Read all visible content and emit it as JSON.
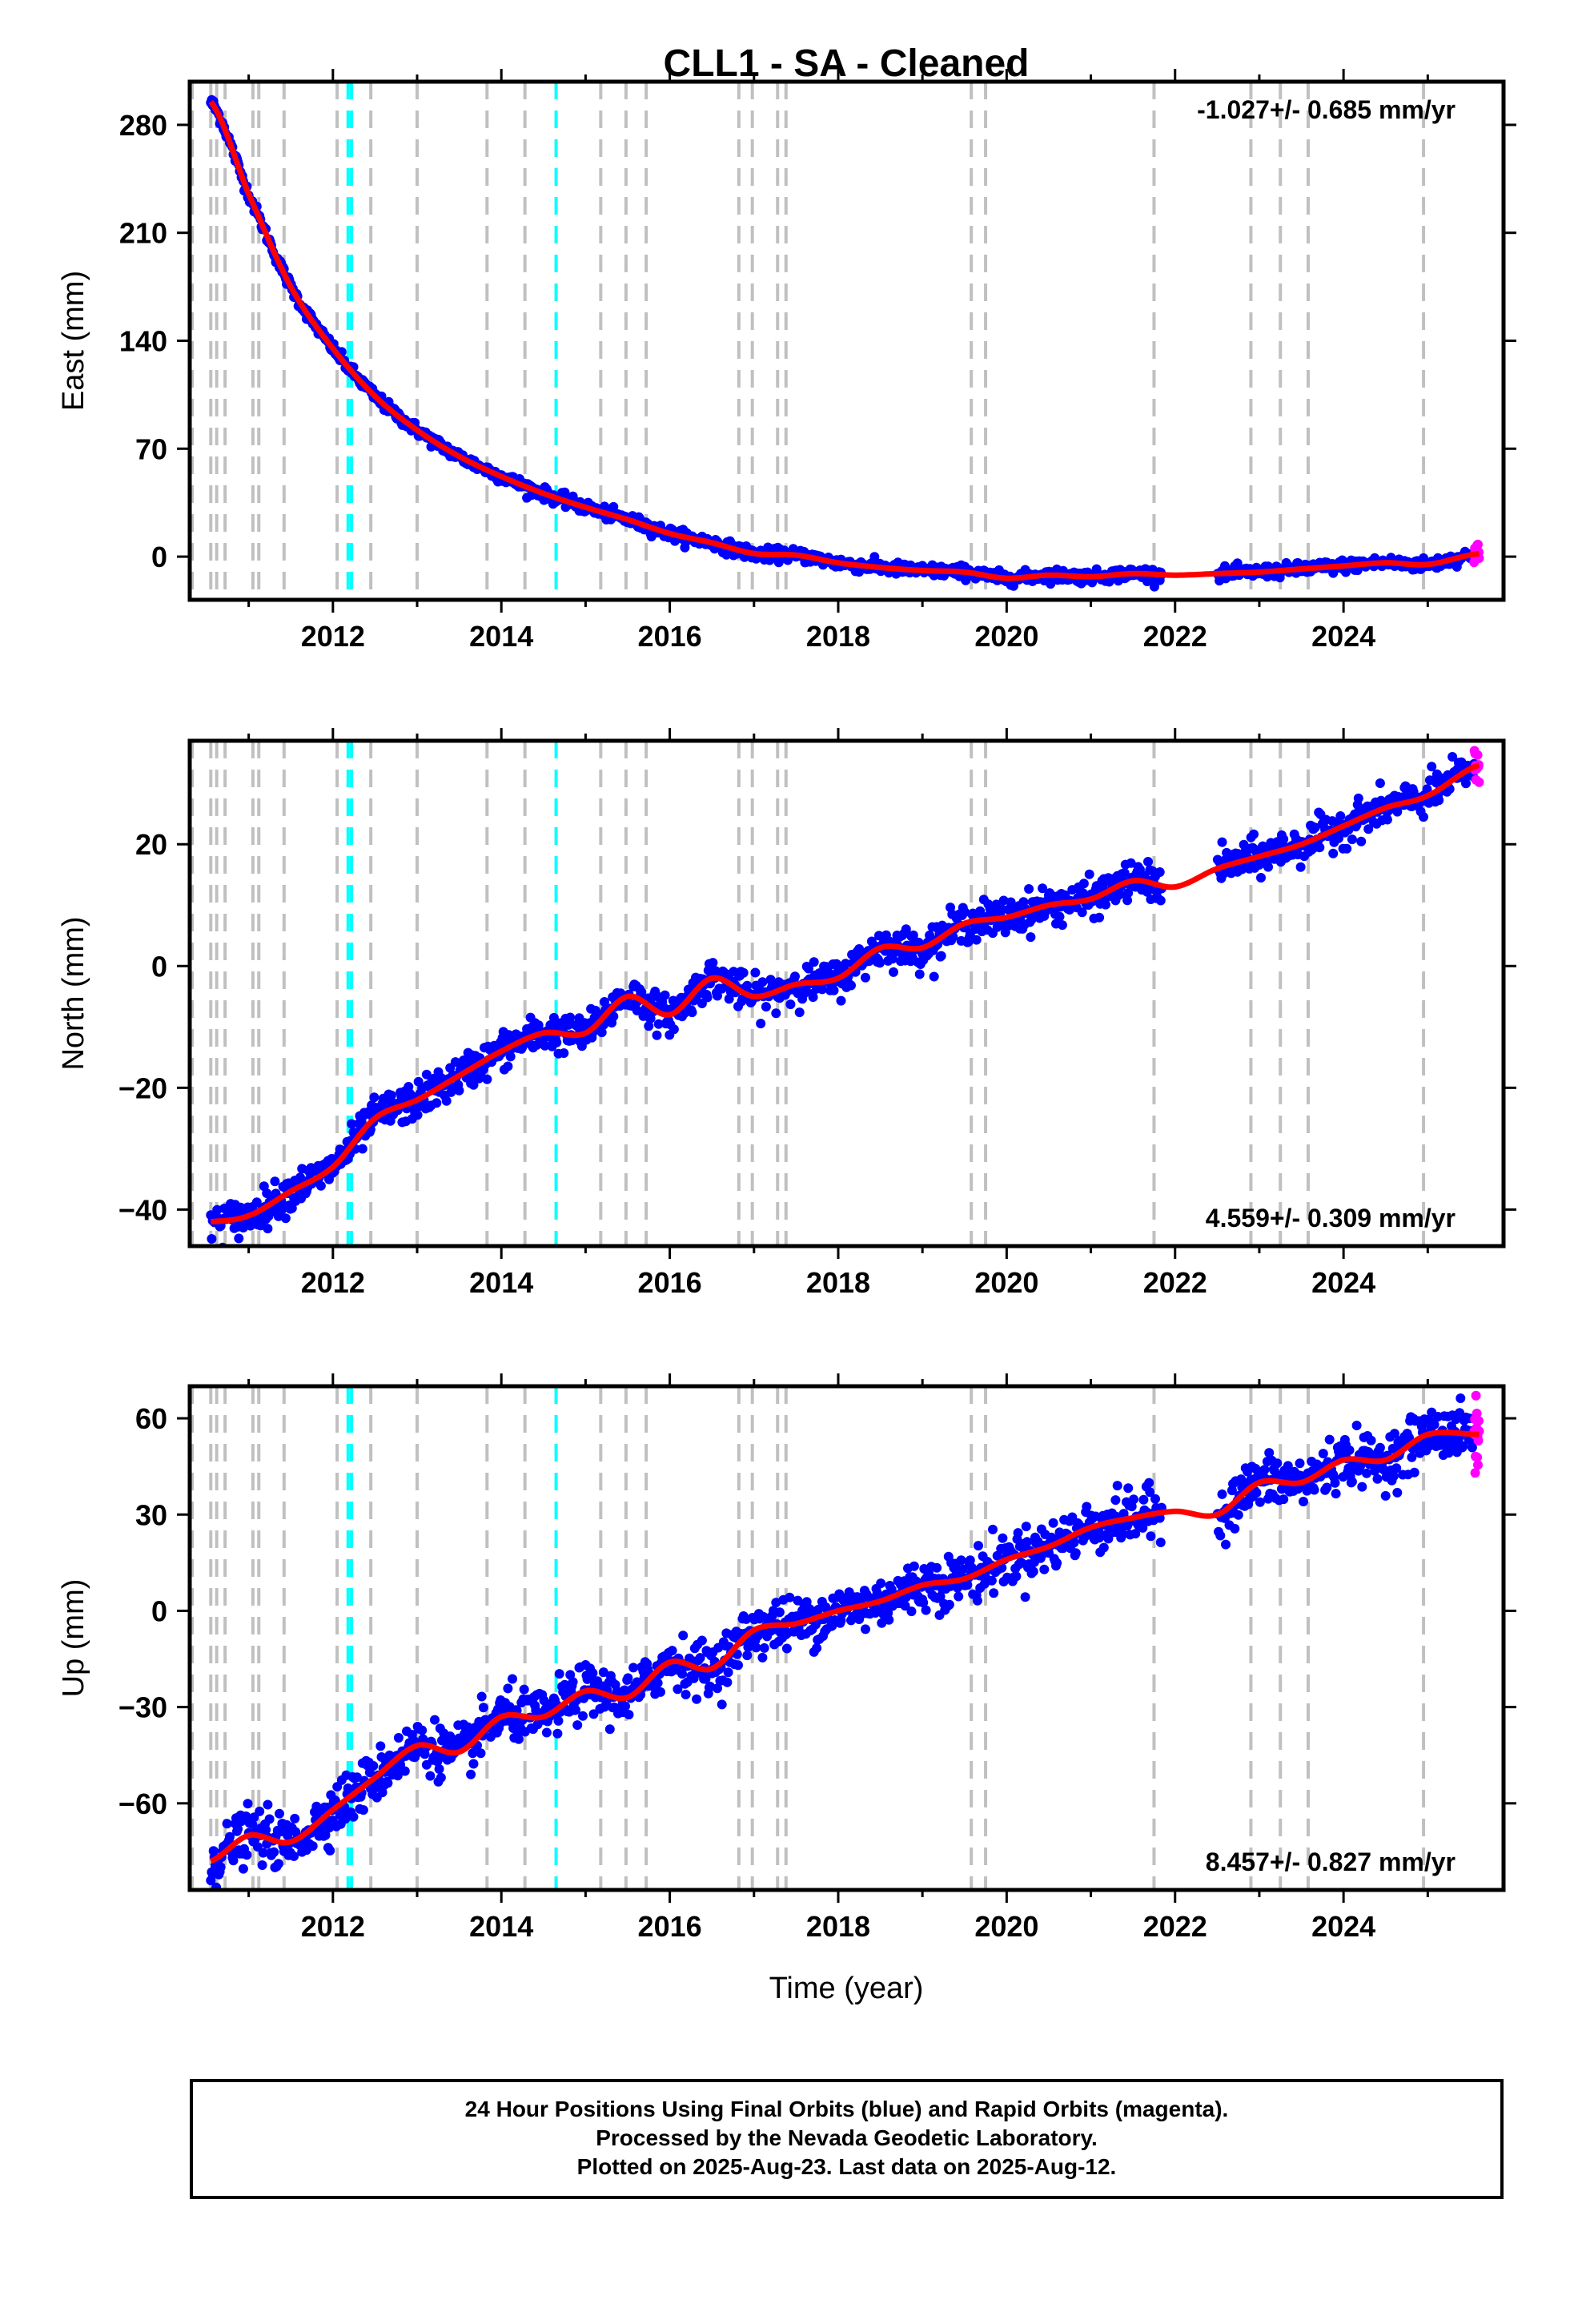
{
  "title": "CLL1  - SA - Cleaned",
  "xlabel": "Time (year)",
  "footer": {
    "line1": "24 Hour Positions Using Final Orbits (blue) and Rapid Orbits (magenta).",
    "line2": "Processed by the Nevada Geodetic Laboratory.",
    "line3": "Plotted on 2025-Aug-23. Last data on 2025-Aug-12."
  },
  "colors": {
    "final_orbits": "#0000ff",
    "rapid_orbits": "#ff00ff",
    "model": "#ff0000",
    "equipment_change": "#c0c0c0",
    "earthquake": "#00ffff"
  },
  "chart_data": [
    {
      "type": "scatter",
      "ylabel": "East (mm)",
      "rate": "-1.027+/- 0.685 mm/yr",
      "xlim": [
        2010.3,
        2025.9
      ],
      "ylim": [
        -28,
        308
      ],
      "xticks": [
        2012,
        2014,
        2016,
        2018,
        2020,
        2022,
        2024
      ],
      "yticks": [
        0,
        70,
        140,
        210,
        280
      ],
      "grid": false,
      "data_span": [
        2010.55,
        2025.61
      ],
      "gap": [
        2021.85,
        2022.5
      ],
      "series": [
        {
          "name": "Final Orbits (blue)",
          "color": "#0000ff",
          "noise": 2.0
        },
        {
          "name": "Rapid Orbits (magenta)",
          "color": "#ff00ff",
          "x_range": [
            2025.55,
            2025.61
          ]
        }
      ],
      "model_points": {
        "x": [
          2010.55,
          2011.0,
          2011.5,
          2012.0,
          2012.5,
          2013.0,
          2013.5,
          2014.0,
          2014.5,
          2015.0,
          2015.5,
          2016.0,
          2016.5,
          2017.0,
          2017.5,
          2018.0,
          2018.5,
          2019.0,
          2019.5,
          2020.0,
          2020.5,
          2021.0,
          2021.5,
          2022.0,
          2022.5,
          2023.0,
          2023.5,
          2024.0,
          2024.5,
          2025.0,
          2025.61
        ],
        "y": [
          295,
          235,
          175,
          135,
          104,
          82,
          65,
          52,
          41,
          32,
          24,
          15,
          9,
          2,
          1,
          -4,
          -7,
          -9,
          -10,
          -14,
          -12,
          -13,
          -11,
          -12,
          -11,
          -10,
          -8,
          -6,
          -4,
          -5,
          2
        ]
      }
    },
    {
      "type": "scatter",
      "ylabel": "North (mm)",
      "rate": "4.559+/- 0.309 mm/yr",
      "xlim": [
        2010.3,
        2025.9
      ],
      "ylim": [
        -46,
        37
      ],
      "xticks": [
        2012,
        2014,
        2016,
        2018,
        2020,
        2022,
        2024
      ],
      "yticks": [
        -40,
        -20,
        0,
        20
      ],
      "grid": false,
      "data_span": [
        2010.55,
        2025.61
      ],
      "gap": [
        2021.85,
        2022.5
      ],
      "series": [
        {
          "name": "Final Orbits (blue)",
          "color": "#0000ff",
          "noise": 1.5
        },
        {
          "name": "Rapid Orbits (magenta)",
          "color": "#ff00ff",
          "x_range": [
            2025.55,
            2025.61
          ]
        }
      ],
      "model_points": {
        "x": [
          2010.55,
          2011.0,
          2011.5,
          2012.0,
          2012.5,
          2013.0,
          2013.5,
          2014.0,
          2014.5,
          2015.0,
          2015.5,
          2016.0,
          2016.5,
          2017.0,
          2017.5,
          2018.0,
          2018.5,
          2019.0,
          2019.5,
          2020.0,
          2020.5,
          2021.0,
          2021.5,
          2022.0,
          2022.5,
          2023.0,
          2023.5,
          2024.0,
          2024.5,
          2025.0,
          2025.61
        ],
        "y": [
          -42,
          -41,
          -37,
          -33,
          -25,
          -22,
          -18,
          -14,
          -11,
          -11,
          -5,
          -8,
          -2,
          -5,
          -3,
          -2,
          3,
          3,
          7,
          8,
          10,
          11,
          14,
          13,
          16,
          18,
          20,
          23,
          26,
          28,
          33
        ]
      }
    },
    {
      "type": "scatter",
      "ylabel": "Up (mm)",
      "rate": "8.457+/- 0.827 mm/yr",
      "xlim": [
        2010.3,
        2025.9
      ],
      "ylim": [
        -87,
        70
      ],
      "xticks": [
        2012,
        2014,
        2016,
        2018,
        2020,
        2022,
        2024
      ],
      "yticks": [
        -60,
        -30,
        0,
        30,
        60
      ],
      "grid": false,
      "data_span": [
        2010.55,
        2025.61
      ],
      "gap": [
        2021.85,
        2022.5
      ],
      "series": [
        {
          "name": "Final Orbits (blue)",
          "color": "#0000ff",
          "noise": 4.0
        },
        {
          "name": "Rapid Orbits (magenta)",
          "color": "#ff00ff",
          "x_range": [
            2025.55,
            2025.61
          ]
        }
      ],
      "model_points": {
        "x": [
          2010.55,
          2011.0,
          2011.5,
          2012.0,
          2012.5,
          2013.0,
          2013.5,
          2014.0,
          2014.5,
          2015.0,
          2015.5,
          2016.0,
          2016.5,
          2017.0,
          2017.5,
          2018.0,
          2018.5,
          2019.0,
          2019.5,
          2020.0,
          2020.5,
          2021.0,
          2021.5,
          2022.0,
          2022.5,
          2023.0,
          2023.5,
          2024.0,
          2024.5,
          2025.0,
          2025.61
        ],
        "y": [
          -78,
          -70,
          -72,
          -62,
          -52,
          -42,
          -44,
          -33,
          -33,
          -25,
          -27,
          -16,
          -18,
          -6,
          -4,
          0,
          3,
          8,
          10,
          16,
          20,
          26,
          29,
          31,
          30,
          40,
          40,
          47,
          47,
          55,
          55
        ]
      }
    }
  ],
  "equipment_changes": [
    2010.33,
    2010.55,
    2010.62,
    2010.72,
    2011.05,
    2011.12,
    2011.42,
    2012.05,
    2012.45,
    2013.0,
    2013.83,
    2014.28,
    2015.18,
    2015.48,
    2015.72,
    2016.82,
    2016.98,
    2017.28,
    2017.38,
    2019.58,
    2019.75,
    2021.75,
    2022.9,
    2023.25,
    2023.58,
    2024.95
  ],
  "earthquakes": [
    2012.18,
    2012.22,
    2014.65
  ]
}
